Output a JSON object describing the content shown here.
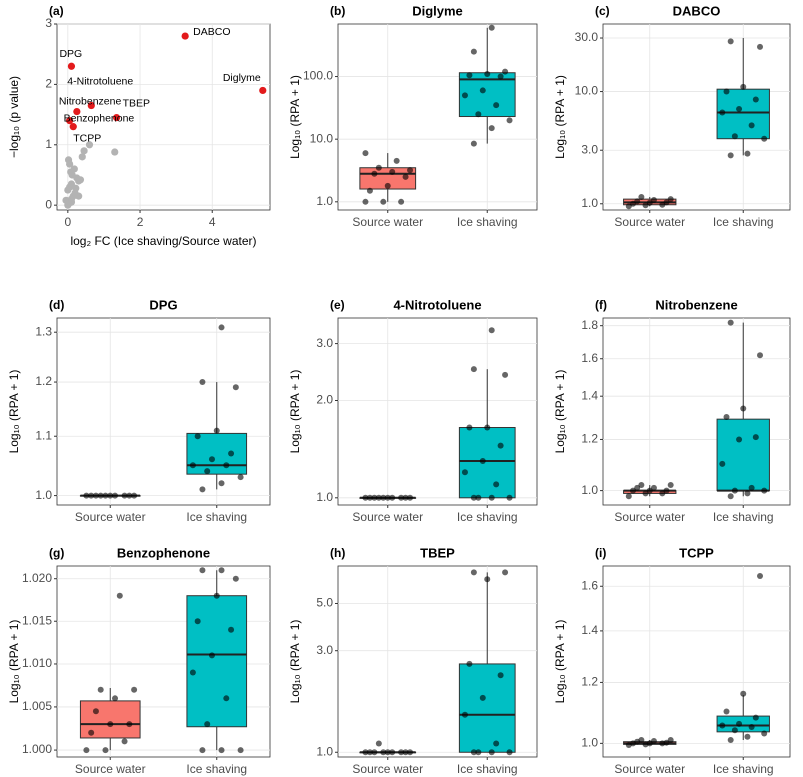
{
  "chart_data": [
    {
      "type": "scatter",
      "panel_label": "(a)",
      "xlabel": "log₂ FC (Ice shaving/Source water)",
      "ylabel": "−log₁₀ (p value)",
      "xlim": [
        -0.3,
        5.6
      ],
      "ylim": [
        -0.08,
        3
      ],
      "xticks": [
        0,
        2,
        4
      ],
      "yticks": [
        0,
        1,
        2,
        3
      ],
      "grid": true,
      "series": [
        {
          "color": "#b3b3b3",
          "x": [
            0,
            0.02,
            0.05,
            -0.05,
            0.1,
            0.15,
            0.2,
            0,
            0.05,
            0.1,
            0.3,
            0.35,
            0.25,
            0.12,
            0.08,
            0.18,
            0.22,
            0.02,
            0.4,
            0.45,
            0.6,
            1.3,
            0.3,
            0.1,
            0.05
          ],
          "y": [
            0,
            0.02,
            0.05,
            0.08,
            0.1,
            0.15,
            0.2,
            0.25,
            0.3,
            0.35,
            0.4,
            0.42,
            0.45,
            0.5,
            0.55,
            0.6,
            0.28,
            0.75,
            0.8,
            0.9,
            1.0,
            0.88,
            0.15,
            0.05,
            0.68
          ]
        },
        {
          "color": "#e31a1c",
          "x": [
            3.25,
            5.4,
            0.1,
            0.65,
            0.25,
            1.35,
            0.05,
            0.15
          ],
          "y": [
            2.8,
            1.9,
            2.3,
            1.65,
            1.55,
            1.45,
            1.4,
            1.3
          ],
          "labels": [
            "DABCO",
            "Diglyme",
            "DPG",
            "4-Nitrotoluene",
            "Nitrobenzene",
            "TBEP",
            "Benzophenone",
            "TCPP"
          ]
        }
      ]
    },
    {
      "type": "box",
      "panel_label": "(b)",
      "title": "Diglyme",
      "ylabel": "Log₁₀ (RPA + 1)",
      "log": true,
      "ylim": [
        0.74,
        690
      ],
      "yticks": [
        {
          "value": 1,
          "label": "1.0"
        },
        {
          "value": 10,
          "label": "10.0"
        },
        {
          "value": 100,
          "label": "100.0"
        }
      ],
      "categories": [
        "Source water",
        "Ice shaving"
      ],
      "boxes": [
        {
          "color": "#f8766d",
          "whisker_low": 1,
          "q1": 1.6,
          "median": 2.8,
          "q3": 3.5,
          "whisker_high": 6,
          "points": [
            1,
            1,
            1,
            1.5,
            1.8,
            2.5,
            2.8,
            3,
            3.2,
            3.5,
            4.5,
            6
          ]
        },
        {
          "color": "#00bfc4",
          "whisker_low": 8.5,
          "q1": 23,
          "median": 90,
          "q3": 115,
          "whisker_high": 600,
          "points": [
            8.5,
            15,
            20,
            25,
            35,
            50,
            60,
            100,
            105,
            110,
            120,
            250,
            600
          ]
        }
      ]
    },
    {
      "type": "box",
      "panel_label": "(c)",
      "title": "DABCO",
      "ylabel": "Log₁₀ (RPA + 1)",
      "log": true,
      "ylim": [
        0.88,
        40
      ],
      "yticks": [
        {
          "value": 1,
          "label": "1.0"
        },
        {
          "value": 3,
          "label": "3.0"
        },
        {
          "value": 10,
          "label": "10.0"
        },
        {
          "value": 30,
          "label": "30.0"
        }
      ],
      "categories": [
        "Source water",
        "Ice shaving"
      ],
      "boxes": [
        {
          "color": "#f8766d",
          "whisker_low": 0.95,
          "q1": 0.98,
          "median": 1.03,
          "q3": 1.1,
          "whisker_high": 1.15,
          "points": [
            0.95,
            0.97,
            0.98,
            1,
            1.02,
            1.03,
            1.05,
            1.08,
            1.1,
            1.15
          ]
        },
        {
          "color": "#00bfc4",
          "whisker_low": 2.7,
          "q1": 3.8,
          "median": 6.5,
          "q3": 10.5,
          "whisker_high": 30,
          "points": [
            2.7,
            2.8,
            3.8,
            4,
            5,
            6.5,
            7,
            8.5,
            10,
            11,
            25,
            28
          ]
        }
      ]
    },
    {
      "type": "box",
      "panel_label": "(d)",
      "title": "DPG",
      "ylabel": "Log₁₀ (RPA + 1)",
      "log": true,
      "ylim": [
        0.985,
        1.33
      ],
      "yticks": [
        {
          "value": 1,
          "label": "1.0"
        },
        {
          "value": 1.1,
          "label": "1.1"
        },
        {
          "value": 1.2,
          "label": "1.2"
        },
        {
          "value": 1.3,
          "label": "1.3"
        }
      ],
      "categories": [
        "Source water",
        "Ice shaving"
      ],
      "boxes": [
        {
          "color": "#f8766d",
          "whisker_low": 1,
          "q1": 1,
          "median": 1,
          "q3": 1,
          "whisker_high": 1,
          "points": [
            1,
            1,
            1,
            1,
            1,
            1,
            1,
            1,
            1,
            1
          ]
        },
        {
          "color": "#00bfc4",
          "whisker_low": 1.01,
          "q1": 1.035,
          "median": 1.05,
          "q3": 1.105,
          "whisker_high": 1.2,
          "points": [
            1.01,
            1.02,
            1.03,
            1.04,
            1.05,
            1.05,
            1.06,
            1.07,
            1.1,
            1.11,
            1.19,
            1.2,
            1.31
          ]
        }
      ]
    },
    {
      "type": "box",
      "panel_label": "(e)",
      "title": "4-Nitrotoluene",
      "ylabel": "Log₁₀ (RPA + 1)",
      "log": true,
      "ylim": [
        0.95,
        3.6
      ],
      "yticks": [
        {
          "value": 1,
          "label": "1.0"
        },
        {
          "value": 2,
          "label": "2.0"
        },
        {
          "value": 3,
          "label": "3.0"
        }
      ],
      "categories": [
        "Source water",
        "Ice shaving"
      ],
      "boxes": [
        {
          "color": "#f8766d",
          "whisker_low": 1,
          "q1": 1,
          "median": 1,
          "q3": 1,
          "whisker_high": 1,
          "points": [
            1,
            1,
            1,
            1,
            1,
            1,
            1,
            1,
            1,
            1
          ]
        },
        {
          "color": "#00bfc4",
          "whisker_low": 1,
          "q1": 1,
          "median": 1.3,
          "q3": 1.65,
          "whisker_high": 2.5,
          "points": [
            1,
            1,
            1,
            1,
            1.1,
            1.2,
            1.3,
            1.45,
            1.65,
            1.65,
            2.4,
            2.5,
            3.3
          ]
        }
      ]
    },
    {
      "type": "box",
      "panel_label": "(f)",
      "title": "Nitrobenzene",
      "ylabel": "Log₁₀ (RPA + 1)",
      "log": true,
      "ylim": [
        0.95,
        1.85
      ],
      "yticks": [
        {
          "value": 1,
          "label": "1.0"
        },
        {
          "value": 1.2,
          "label": "1.2"
        },
        {
          "value": 1.4,
          "label": "1.4"
        },
        {
          "value": 1.6,
          "label": "1.6"
        },
        {
          "value": 1.8,
          "label": "1.8"
        }
      ],
      "categories": [
        "Source water",
        "Ice shaving"
      ],
      "boxes": [
        {
          "color": "#f8766d",
          "whisker_low": 0.98,
          "q1": 0.99,
          "median": 1,
          "q3": 1,
          "whisker_high": 1.02,
          "points": [
            0.98,
            0.99,
            0.99,
            1,
            1,
            1,
            1.01,
            1.01,
            1.02,
            1.02
          ]
        },
        {
          "color": "#00bfc4",
          "whisker_low": 0.98,
          "q1": 1,
          "median": 1,
          "q3": 1.29,
          "whisker_high": 1.82,
          "points": [
            0.98,
            0.99,
            1,
            1,
            1.01,
            1.1,
            1.2,
            1.21,
            1.3,
            1.34,
            1.62,
            1.82
          ]
        }
      ]
    },
    {
      "type": "box",
      "panel_label": "(g)",
      "title": "Benzophenone",
      "ylabel": "Log₁₀ (RPA + 1)",
      "log": true,
      "ylim": [
        0.9992,
        1.0215
      ],
      "yticks": [
        {
          "value": 1,
          "label": "1.000"
        },
        {
          "value": 1.005,
          "label": "1.005"
        },
        {
          "value": 1.01,
          "label": "1.010"
        },
        {
          "value": 1.015,
          "label": "1.015"
        },
        {
          "value": 1.02,
          "label": "1.020"
        }
      ],
      "categories": [
        "Source water",
        "Ice shaving"
      ],
      "boxes": [
        {
          "color": "#f8766d",
          "whisker_low": 1,
          "q1": 1.0014,
          "median": 1.003,
          "q3": 1.0057,
          "whisker_high": 1.0072,
          "points": [
            1,
            1,
            1.001,
            1.002,
            1.003,
            1.003,
            1.0045,
            1.006,
            1.007,
            1.007,
            1.018
          ]
        },
        {
          "color": "#00bfc4",
          "whisker_low": 1,
          "q1": 1.0027,
          "median": 1.0111,
          "q3": 1.018,
          "whisker_high": 1.021,
          "points": [
            1,
            1,
            1,
            1.003,
            1.006,
            1.009,
            1.011,
            1.014,
            1.015,
            1.018,
            1.02,
            1.021,
            1.021
          ]
        }
      ]
    },
    {
      "type": "box",
      "panel_label": "(h)",
      "title": "TBEP",
      "ylabel": "Log₁₀ (RPA + 1)",
      "log": true,
      "ylim": [
        0.95,
        7.5
      ],
      "yticks": [
        {
          "value": 1,
          "label": "1.0"
        },
        {
          "value": 3,
          "label": "3.0"
        },
        {
          "value": 5,
          "label": "5.0"
        }
      ],
      "categories": [
        "Source water",
        "Ice shaving"
      ],
      "boxes": [
        {
          "color": "#f8766d",
          "whisker_low": 1,
          "q1": 1,
          "median": 1,
          "q3": 1,
          "whisker_high": 1,
          "points": [
            1,
            1,
            1,
            1,
            1,
            1,
            1,
            1,
            1,
            1.1
          ]
        },
        {
          "color": "#00bfc4",
          "whisker_low": 1,
          "q1": 1,
          "median": 1.5,
          "q3": 2.6,
          "whisker_high": 7,
          "points": [
            1,
            1,
            1,
            1,
            1.1,
            1.5,
            1.8,
            2.3,
            2.6,
            6.5,
            7,
            7
          ]
        }
      ]
    },
    {
      "type": "box",
      "panel_label": "(i)",
      "title": "TCPP",
      "ylabel": "Log₁₀ (RPA + 1)",
      "log": true,
      "ylim": [
        0.96,
        1.7
      ],
      "yticks": [
        {
          "value": 1,
          "label": "1.0"
        },
        {
          "value": 1.2,
          "label": "1.2"
        },
        {
          "value": 1.4,
          "label": "1.4"
        },
        {
          "value": 1.6,
          "label": "1.6"
        }
      ],
      "categories": [
        "Source water",
        "Ice shaving"
      ],
      "boxes": [
        {
          "color": "#f8766d",
          "whisker_low": 0.995,
          "q1": 0.997,
          "median": 1,
          "q3": 1.005,
          "whisker_high": 1.01,
          "points": [
            0.995,
            0.997,
            1,
            1,
            1,
            1.002,
            1.005,
            1.007,
            1.01,
            1.01
          ]
        },
        {
          "color": "#00bfc4",
          "whisker_low": 1.01,
          "q1": 1.035,
          "median": 1.055,
          "q3": 1.085,
          "whisker_high": 1.155,
          "points": [
            1.01,
            1.02,
            1.03,
            1.04,
            1.05,
            1.055,
            1.06,
            1.08,
            1.1,
            1.16,
            1.65
          ]
        }
      ]
    }
  ]
}
